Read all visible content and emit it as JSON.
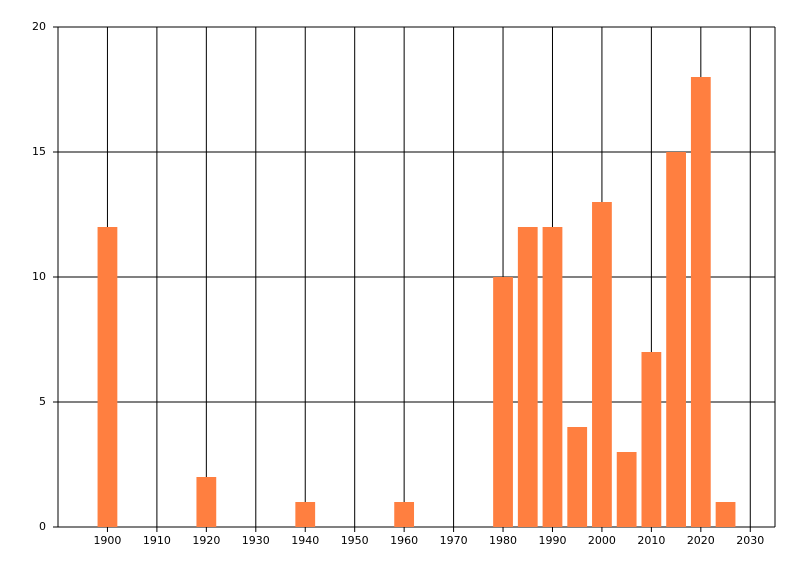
{
  "chart_data": {
    "type": "bar",
    "x": [
      1900,
      1920,
      1940,
      1960,
      1980,
      1985,
      1990,
      1995,
      2000,
      2005,
      2010,
      2015,
      2020,
      2025
    ],
    "values": [
      12,
      2,
      1,
      1,
      10,
      12,
      12,
      4,
      13,
      3,
      7,
      15,
      18,
      1
    ],
    "color": "#ff7f40",
    "xlim": [
      1890,
      2035
    ],
    "xticks": [
      1900,
      1910,
      1920,
      1930,
      1940,
      1950,
      1960,
      1970,
      1980,
      1990,
      2000,
      2010,
      2020,
      2030
    ],
    "ylim": [
      0,
      20
    ],
    "yticks": [
      0,
      5,
      10,
      15,
      20
    ],
    "grid": true
  }
}
